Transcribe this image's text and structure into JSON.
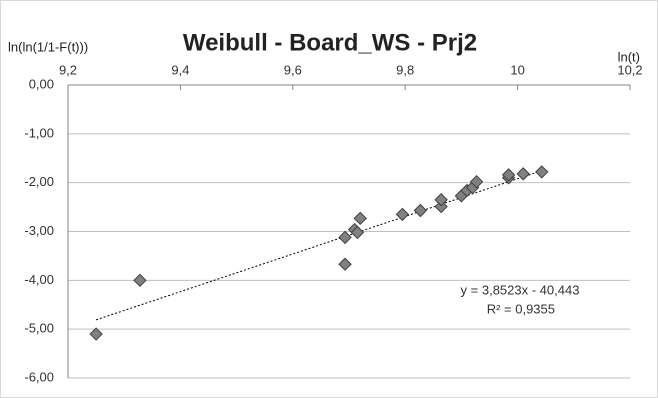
{
  "chart_data": {
    "type": "scatter",
    "title": "Weibull - Board_WS - Prj2",
    "y_label": "ln(ln(1/1-F(t)))",
    "x_label": "ln(t)",
    "color": "#808080",
    "grid": true,
    "xlim": [
      9.2,
      10.2
    ],
    "ylim": [
      -6,
      0
    ],
    "xticks": [
      {
        "value": 9.2,
        "label": "9,2"
      },
      {
        "value": 9.4,
        "label": "9,4"
      },
      {
        "value": 9.6,
        "label": "9,6"
      },
      {
        "value": 9.8,
        "label": "9,8"
      },
      10,
      {
        "value": 10.2,
        "label": "10,2"
      }
    ],
    "yticks": [
      {
        "value": 0,
        "label": "0,00"
      },
      {
        "value": -1,
        "label": "-1,00"
      },
      {
        "value": -2,
        "label": "-2,00"
      },
      {
        "value": -3,
        "label": "-3,00"
      },
      {
        "value": -4,
        "label": "-4,00"
      },
      {
        "value": -5,
        "label": "-5,00"
      },
      {
        "value": -6,
        "label": "-6,00"
      }
    ],
    "x": [
      9.25,
      9.328,
      9.693,
      9.693,
      9.71,
      9.715,
      9.72,
      9.795,
      9.827,
      9.864,
      9.864,
      9.9,
      9.91,
      9.92,
      9.927,
      9.984,
      9.984,
      10.01,
      10.043
    ],
    "values": [
      -5.1,
      -4.0,
      -3.67,
      -3.12,
      -2.96,
      -3.02,
      -2.73,
      -2.65,
      -2.57,
      -2.49,
      -2.35,
      -2.27,
      -2.16,
      -2.1,
      -1.98,
      -1.9,
      -1.84,
      -1.82,
      -1.78
    ],
    "trendline": {
      "slope": 3.8523,
      "intercept": -40.443,
      "equation": "y = 3,8523x - 40,443",
      "r2_label": "R² = 0,9355"
    }
  }
}
